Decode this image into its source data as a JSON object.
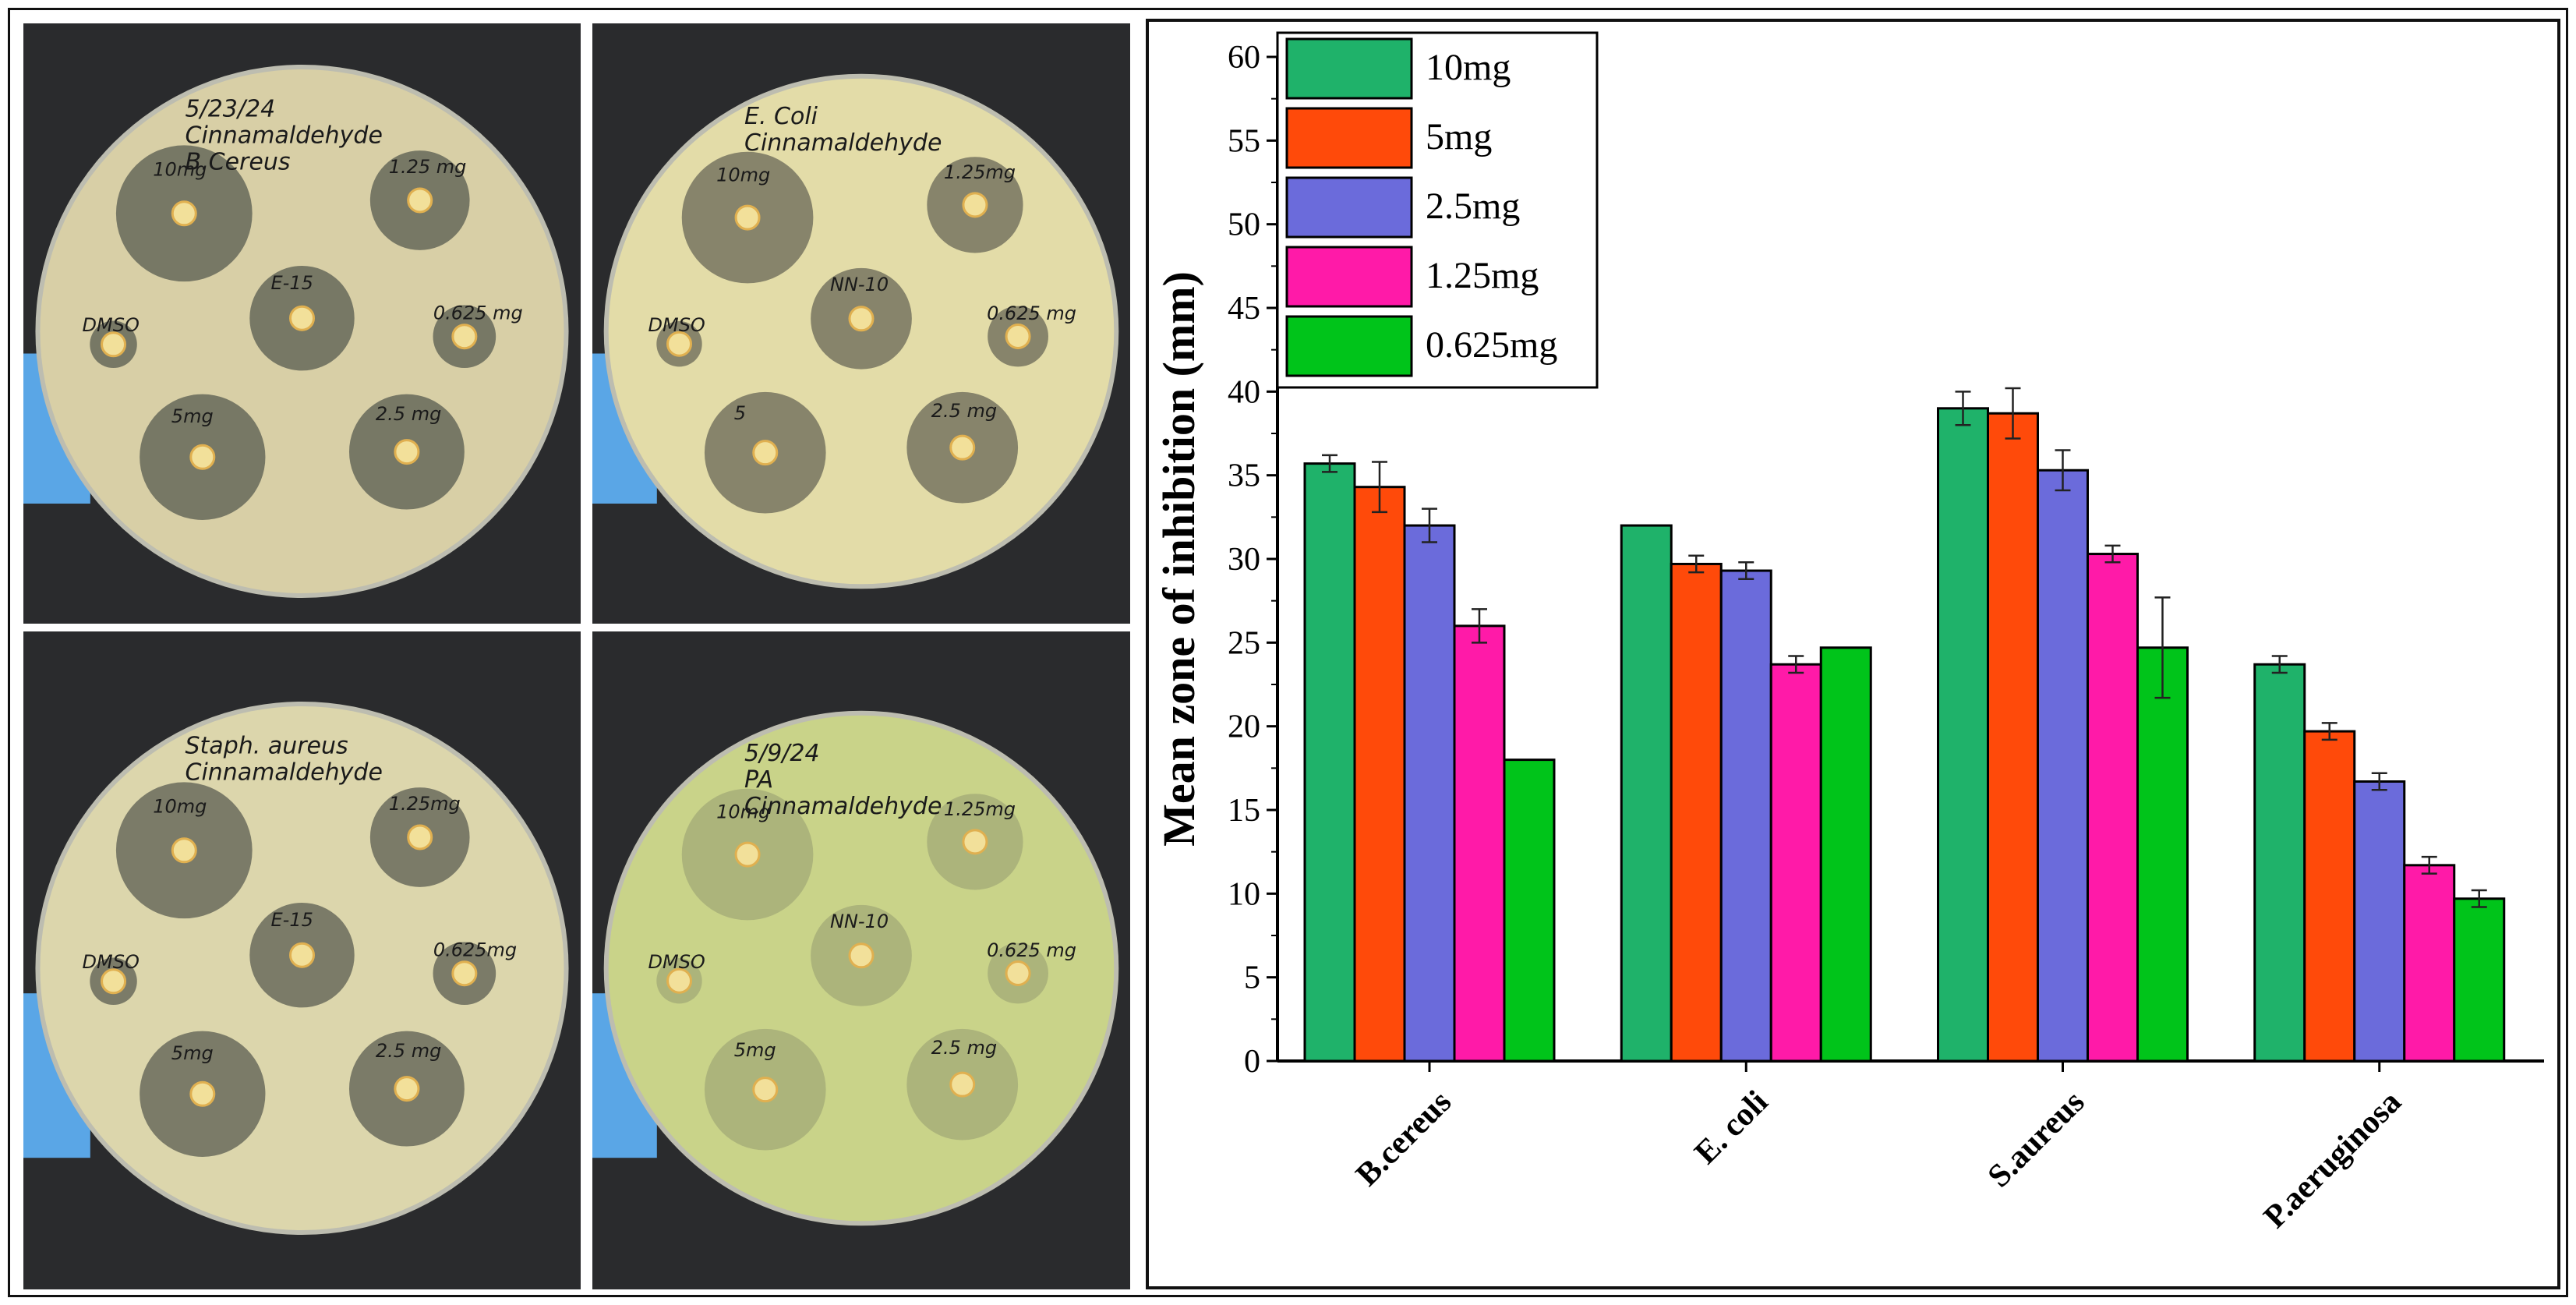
{
  "photos": [
    {
      "name": "plate-b-cereus",
      "bg": "#d8cfa6",
      "zone": "#6d6e5e",
      "lines": [
        "5/23/24",
        "Cinnamaldehyde",
        "B.Cereus"
      ],
      "labels": [
        "10mg",
        "1.25 mg",
        "DMSO",
        "E-15",
        "0.625 mg",
        "5mg",
        "2.5 mg"
      ]
    },
    {
      "name": "plate-e-coli",
      "bg": "#e3dca8",
      "zone": "#7c7a64",
      "lines": [
        "E. Coli",
        "Cinnamaldehyde"
      ],
      "labels": [
        "10mg",
        "1.25mg",
        "DMSO",
        "NN-10",
        "0.625 mg",
        "5",
        "2.5 mg"
      ]
    },
    {
      "name": "plate-s-aureus",
      "bg": "#dcd6ac",
      "zone": "#707160",
      "lines": [
        "Staph. aureus",
        "Cinnamaldehyde"
      ],
      "labels": [
        "10mg",
        "1.25mg",
        "DMSO",
        "E-15",
        "0.625mg",
        "5mg",
        "2.5 mg"
      ]
    },
    {
      "name": "plate-p-aeruginosa",
      "bg": "#c9d389",
      "zone": "#a9b07a",
      "lines": [
        "5/9/24",
        "PA",
        "Cinnamaldehyde"
      ],
      "labels": [
        "10mg",
        "1.25mg",
        "DMSO",
        "NN-10",
        "0.625 mg",
        "5mg",
        "2.5 mg"
      ]
    }
  ],
  "chart_data": {
    "type": "bar",
    "title": "",
    "xlabel": "",
    "ylabel": "Mean zone of inhibition (mm)",
    "ylim": [
      0,
      60
    ],
    "yticks": [
      "0",
      "5",
      "10",
      "15",
      "20",
      "25",
      "30",
      "35",
      "40",
      "45",
      "50",
      "55",
      "60"
    ],
    "categories": [
      "B.cereus",
      "E. coli",
      "S.aureus",
      "P.aeruginosa"
    ],
    "legend_position": "top-left",
    "grid": false,
    "series": [
      {
        "name": "10mg",
        "color": "#1fb26a",
        "values": [
          35.7,
          32.0,
          39.0,
          23.7
        ],
        "errors": [
          0.5,
          0,
          1.0,
          0.5
        ]
      },
      {
        "name": "5mg",
        "color": "#ff4a0a",
        "values": [
          34.3,
          29.7,
          38.7,
          19.7
        ],
        "errors": [
          1.5,
          0.5,
          1.5,
          0.5
        ]
      },
      {
        "name": "2.5mg",
        "color": "#6b6bdb",
        "values": [
          32.0,
          29.3,
          35.3,
          16.7
        ],
        "errors": [
          1.0,
          0.5,
          1.2,
          0.5
        ]
      },
      {
        "name": "1.25mg",
        "color": "#ff1aa8",
        "values": [
          26.0,
          23.7,
          30.3,
          11.7
        ],
        "errors": [
          1.0,
          0.5,
          0.5,
          0.5
        ]
      },
      {
        "name": "0.625mg",
        "color": "#00c41a",
        "values": [
          18.0,
          24.7,
          24.7,
          9.7
        ],
        "errors": [
          0,
          0,
          3.0,
          0.5
        ]
      }
    ]
  }
}
